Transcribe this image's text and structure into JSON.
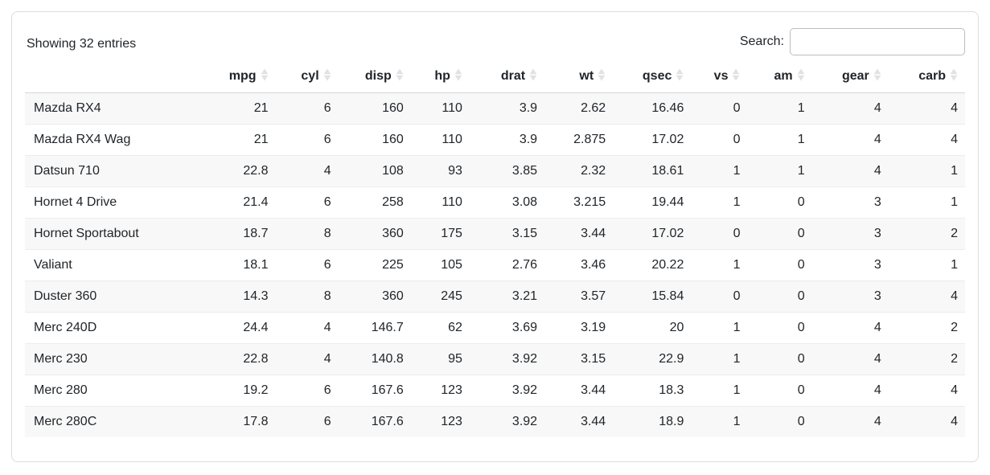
{
  "toolbar": {
    "showing_text": "Showing 32 entries",
    "search_label": "Search:",
    "search_value": ""
  },
  "table": {
    "row_name_header": "",
    "columns": [
      {
        "key": "mpg",
        "label": "mpg",
        "sortable": true
      },
      {
        "key": "cyl",
        "label": "cyl",
        "sortable": true
      },
      {
        "key": "disp",
        "label": "disp",
        "sortable": true
      },
      {
        "key": "hp",
        "label": "hp",
        "sortable": true
      },
      {
        "key": "drat",
        "label": "drat",
        "sortable": true
      },
      {
        "key": "wt",
        "label": "wt",
        "sortable": true
      },
      {
        "key": "qsec",
        "label": "qsec",
        "sortable": true
      },
      {
        "key": "vs",
        "label": "vs",
        "sortable": true
      },
      {
        "key": "am",
        "label": "am",
        "sortable": true
      },
      {
        "key": "gear",
        "label": "gear",
        "sortable": true
      },
      {
        "key": "carb",
        "label": "carb",
        "sortable": true
      }
    ],
    "rows": [
      {
        "name": "Mazda RX4",
        "values": [
          21,
          6,
          160,
          110,
          3.9,
          2.62,
          16.46,
          0,
          1,
          4,
          4
        ]
      },
      {
        "name": "Mazda RX4 Wag",
        "values": [
          21,
          6,
          160,
          110,
          3.9,
          2.875,
          17.02,
          0,
          1,
          4,
          4
        ]
      },
      {
        "name": "Datsun 710",
        "values": [
          22.8,
          4,
          108,
          93,
          3.85,
          2.32,
          18.61,
          1,
          1,
          4,
          1
        ]
      },
      {
        "name": "Hornet 4 Drive",
        "values": [
          21.4,
          6,
          258,
          110,
          3.08,
          3.215,
          19.44,
          1,
          0,
          3,
          1
        ]
      },
      {
        "name": "Hornet Sportabout",
        "values": [
          18.7,
          8,
          360,
          175,
          3.15,
          3.44,
          17.02,
          0,
          0,
          3,
          2
        ]
      },
      {
        "name": "Valiant",
        "values": [
          18.1,
          6,
          225,
          105,
          2.76,
          3.46,
          20.22,
          1,
          0,
          3,
          1
        ]
      },
      {
        "name": "Duster 360",
        "values": [
          14.3,
          8,
          360,
          245,
          3.21,
          3.57,
          15.84,
          0,
          0,
          3,
          4
        ]
      },
      {
        "name": "Merc 240D",
        "values": [
          24.4,
          4,
          146.7,
          62,
          3.69,
          3.19,
          20,
          1,
          0,
          4,
          2
        ]
      },
      {
        "name": "Merc 230",
        "values": [
          22.8,
          4,
          140.8,
          95,
          3.92,
          3.15,
          22.9,
          1,
          0,
          4,
          2
        ]
      },
      {
        "name": "Merc 280",
        "values": [
          19.2,
          6,
          167.6,
          123,
          3.92,
          3.44,
          18.3,
          1,
          0,
          4,
          4
        ]
      },
      {
        "name": "Merc 280C",
        "values": [
          17.8,
          6,
          167.6,
          123,
          3.92,
          3.44,
          18.9,
          1,
          0,
          4,
          4
        ]
      }
    ]
  },
  "colors": {
    "text": "#212529",
    "stripe": "#f8f8f8",
    "row_border": "#ececec",
    "header_border": "#d6d6d6",
    "card_border": "#dddddd",
    "input_border": "#bdbdbd",
    "sort_icon": "#e2e2e2"
  },
  "icons": {
    "sort": "sort-diamond-icon"
  }
}
